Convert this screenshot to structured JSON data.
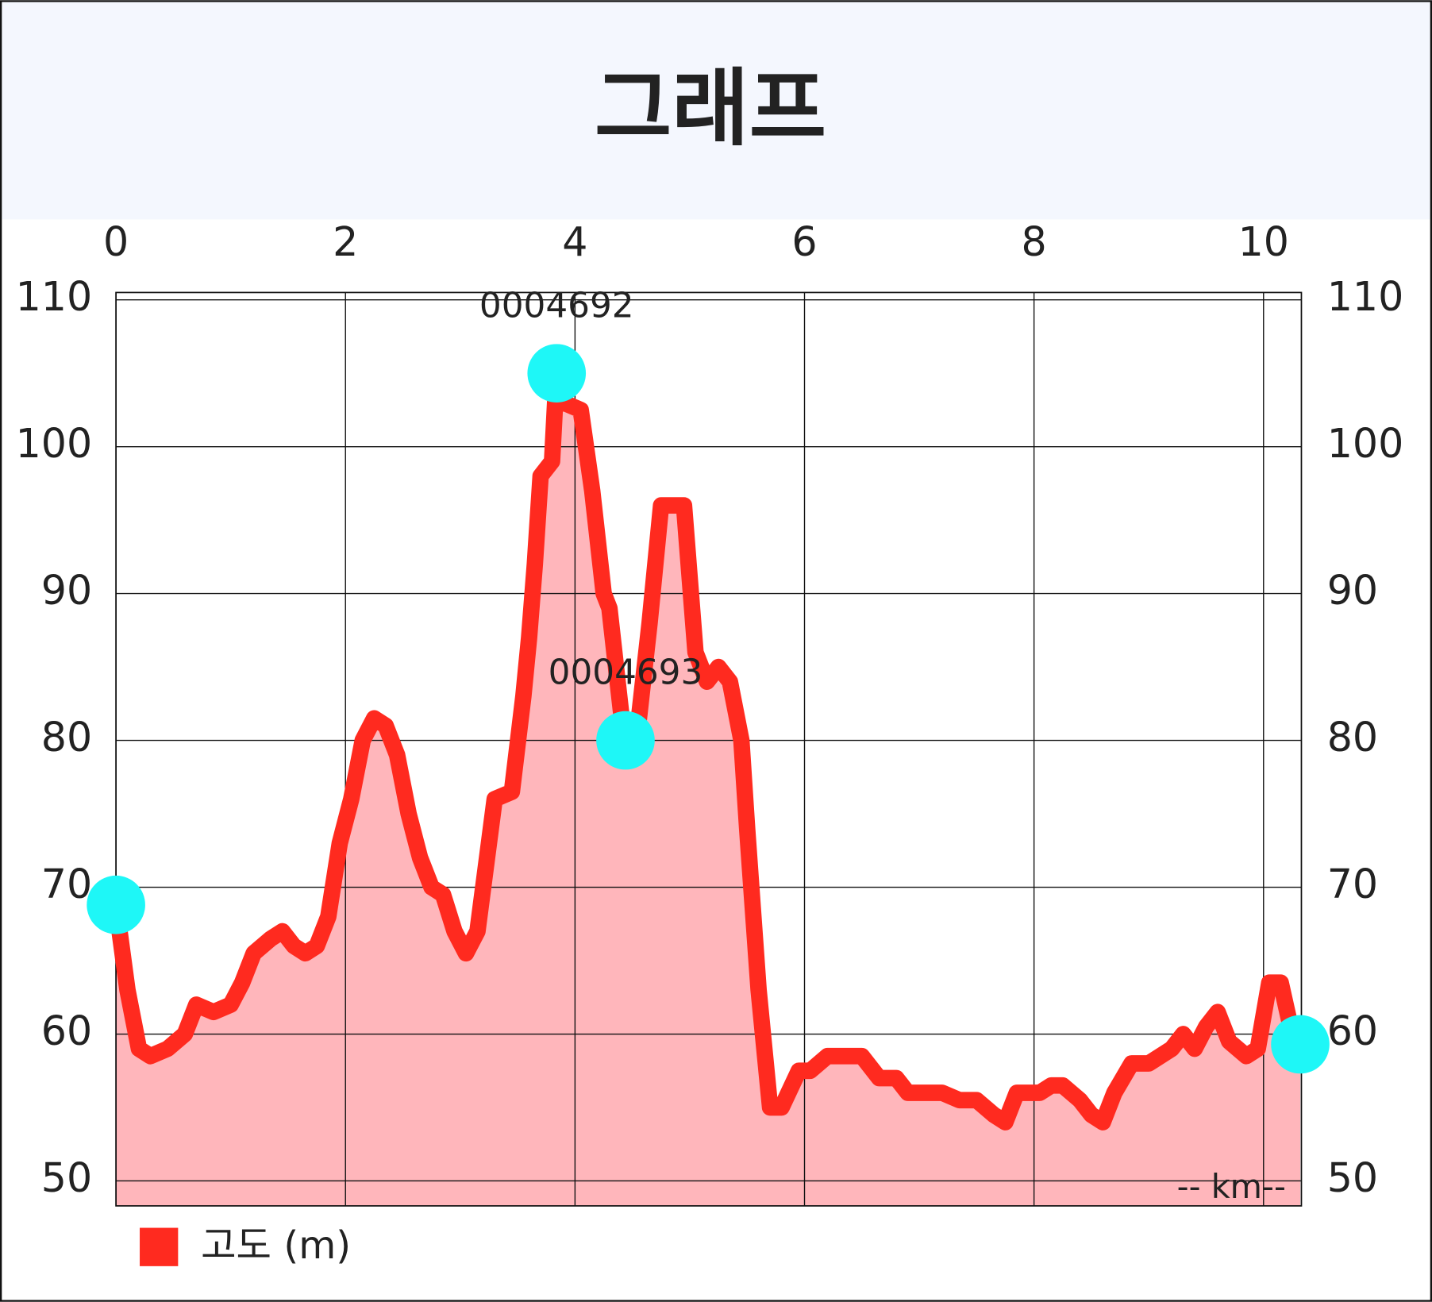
{
  "chart_data": {
    "type": "line",
    "title": "그래프",
    "xlabel": "-- km--",
    "xaxis_position": "top",
    "x": [
      0,
      0.1,
      0.2,
      0.3,
      0.45,
      0.6,
      0.7,
      0.85,
      1.0,
      1.1,
      1.2,
      1.35,
      1.45,
      1.55,
      1.65,
      1.75,
      1.85,
      1.95,
      2.05,
      2.1,
      2.15,
      2.25,
      2.35,
      2.45,
      2.55,
      2.65,
      2.75,
      2.85,
      2.95,
      3.05,
      3.15,
      3.25,
      3.3,
      3.45,
      3.55,
      3.6,
      3.65,
      3.7,
      3.8,
      3.84,
      3.9,
      4.05,
      4.15,
      4.25,
      4.3,
      4.4,
      4.44,
      4.55,
      4.65,
      4.75,
      4.85,
      4.95,
      5.05,
      5.15,
      5.25,
      5.35,
      5.45,
      5.5,
      5.6,
      5.7,
      5.8,
      5.95,
      6.05,
      6.2,
      6.35,
      6.5,
      6.65,
      6.8,
      6.9,
      7.05,
      7.2,
      7.35,
      7.5,
      7.65,
      7.75,
      7.85,
      7.95,
      8.05,
      8.15,
      8.25,
      8.4,
      8.5,
      8.6,
      8.7,
      8.85,
      9.0,
      9.1,
      9.2,
      9.3,
      9.4,
      9.5,
      9.6,
      9.7,
      9.85,
      9.95,
      10.05,
      10.15,
      10.25,
      10.32
    ],
    "series": [
      {
        "name": "고도 (m)",
        "color": "#ff2a1f",
        "fill_color": "#ffb6bb",
        "values": [
          68.8,
          63,
          59,
          58.5,
          59,
          60,
          62,
          61.5,
          62,
          63.5,
          65.5,
          66.5,
          67,
          66,
          65.5,
          66,
          68,
          73,
          76,
          78,
          80,
          81.5,
          81,
          79,
          75,
          72,
          70,
          69.5,
          67,
          65.5,
          67,
          73,
          76,
          76.5,
          83,
          87,
          92,
          98,
          99,
          105,
          103,
          102.5,
          97,
          90,
          89,
          82,
          80,
          81,
          88,
          96,
          96,
          96,
          86,
          84,
          85,
          84,
          80,
          74,
          63,
          55,
          55,
          57.5,
          57.5,
          58.5,
          58.5,
          58.5,
          57,
          57,
          56,
          56,
          56,
          55.5,
          55.5,
          54.5,
          54,
          56,
          56,
          56,
          56.5,
          56.5,
          55.5,
          54.5,
          54,
          56,
          58,
          58,
          58.5,
          59,
          60,
          59,
          60.5,
          61.5,
          59.5,
          58.5,
          59,
          63.5,
          63.5,
          60,
          59.3
        ]
      }
    ],
    "markers": {
      "color": "#1ef7f7",
      "points": [
        {
          "x": 0,
          "y": 68.8
        },
        {
          "x": 3.84,
          "y": 105,
          "label": "0004692"
        },
        {
          "x": 4.44,
          "y": 80,
          "label": "0004693"
        },
        {
          "x": 10.32,
          "y": 59.3
        }
      ]
    },
    "xlim": [
      0,
      10.33
    ],
    "xticks": [
      0,
      2,
      4,
      6,
      8,
      10
    ],
    "ylim": [
      48.3,
      110.5
    ],
    "yticks": [
      50,
      60,
      70,
      80,
      90,
      100,
      110
    ],
    "y2lim": [
      48.3,
      110.5
    ],
    "y2ticks": [
      50,
      60,
      70,
      80,
      90,
      100,
      110
    ],
    "grid": true
  }
}
